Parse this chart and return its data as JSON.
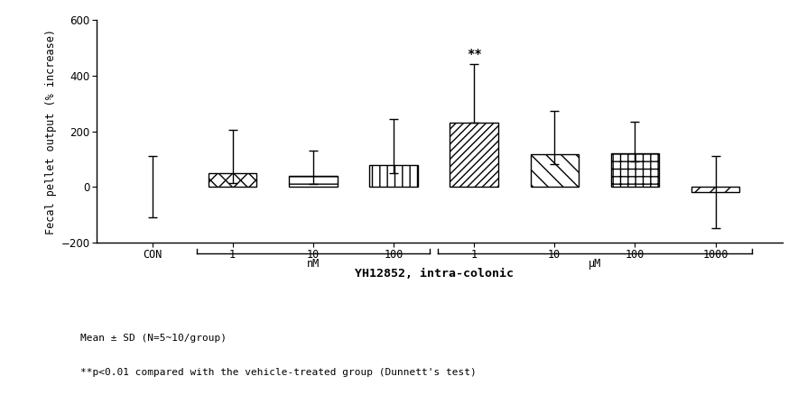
{
  "categories": [
    "CON",
    "1",
    "10",
    "100",
    "1",
    "10",
    "100",
    "1000"
  ],
  "values": [
    0,
    50,
    40,
    78,
    232,
    118,
    120,
    -20
  ],
  "errors_pos": [
    110,
    155,
    90,
    165,
    210,
    155,
    115,
    130
  ],
  "errors_neg": [
    110,
    35,
    30,
    30,
    0,
    35,
    30,
    130
  ],
  "ylabel": "Fecal pellet output (% increase)",
  "xlabel": "YH12852, intra-colonic",
  "ylim": [
    -200,
    600
  ],
  "yticks": [
    -200,
    0,
    200,
    400,
    600
  ],
  "annotation_bar_idx": 4,
  "annotation_text": "**",
  "nm_label": "nM",
  "um_label": "μM",
  "footnote1": "Mean ± SD (N=5~10/group)",
  "footnote2": "**p<0.01 compared with the vehicle-treated group (Dunnett's test)",
  "background_color": "#ffffff",
  "bar_width": 0.6
}
